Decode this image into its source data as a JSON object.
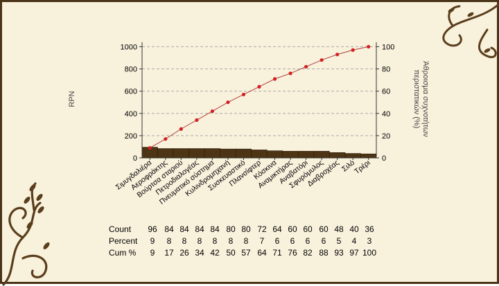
{
  "colors": {
    "background": "#f8f1dc",
    "border": "#4a3418",
    "bar_fill": "#4d3415",
    "line": "#b04040",
    "marker": "#d42020",
    "grid": "#aaaaaa",
    "ornament": "#5a3e1c"
  },
  "chart_data": {
    "type": "bar",
    "subtype": "pareto",
    "title": "",
    "xlabel": "",
    "ylabel": "RPN",
    "y2label": "Άθροισμα συχνοτήτων περιστατικών (%)",
    "ylim": [
      0,
      1040
    ],
    "y_ticks": [
      0,
      200,
      400,
      600,
      800,
      1000
    ],
    "y2lim": [
      0,
      104
    ],
    "y2_ticks": [
      0,
      20,
      40,
      60,
      80,
      100
    ],
    "grid": "horizontal dashed",
    "categories": [
      "Σιμυγδαλιέρα",
      "Αεροφράκτης",
      "Βούρτσα σταριού",
      "Πετροδιαλογέας",
      "Πνευματικό σύστημα",
      "Κυλινδρομηχανή",
      "Συσκευαστικό",
      "Πλανσίφτερ",
      "Κόσκινα",
      "Αναμικτήρας",
      "Αναβατόρι",
      "Σφυρόμυλος",
      "Διαβροχέας",
      "Σιλό",
      "Τρέρι"
    ],
    "series": [
      {
        "type": "bar",
        "values": [
          96,
          84,
          84,
          84,
          84,
          80,
          80,
          72,
          64,
          60,
          60,
          60,
          48,
          40,
          36
        ]
      },
      {
        "type": "line",
        "values": [
          9,
          17,
          26,
          34,
          42,
          50,
          57,
          64,
          71,
          76,
          82,
          88,
          93,
          97,
          100
        ]
      }
    ],
    "table": {
      "row_labels": [
        "Count",
        "Percent",
        "Cum %"
      ],
      "count": [
        96,
        84,
        84,
        84,
        84,
        80,
        80,
        72,
        64,
        60,
        60,
        60,
        48,
        40,
        36
      ],
      "percent": [
        9,
        8,
        8,
        8,
        8,
        8,
        8,
        7,
        6,
        6,
        6,
        6,
        5,
        4,
        3
      ],
      "cum_percent": [
        9,
        17,
        26,
        34,
        42,
        50,
        57,
        64,
        71,
        76,
        82,
        88,
        93,
        97,
        100
      ]
    }
  }
}
